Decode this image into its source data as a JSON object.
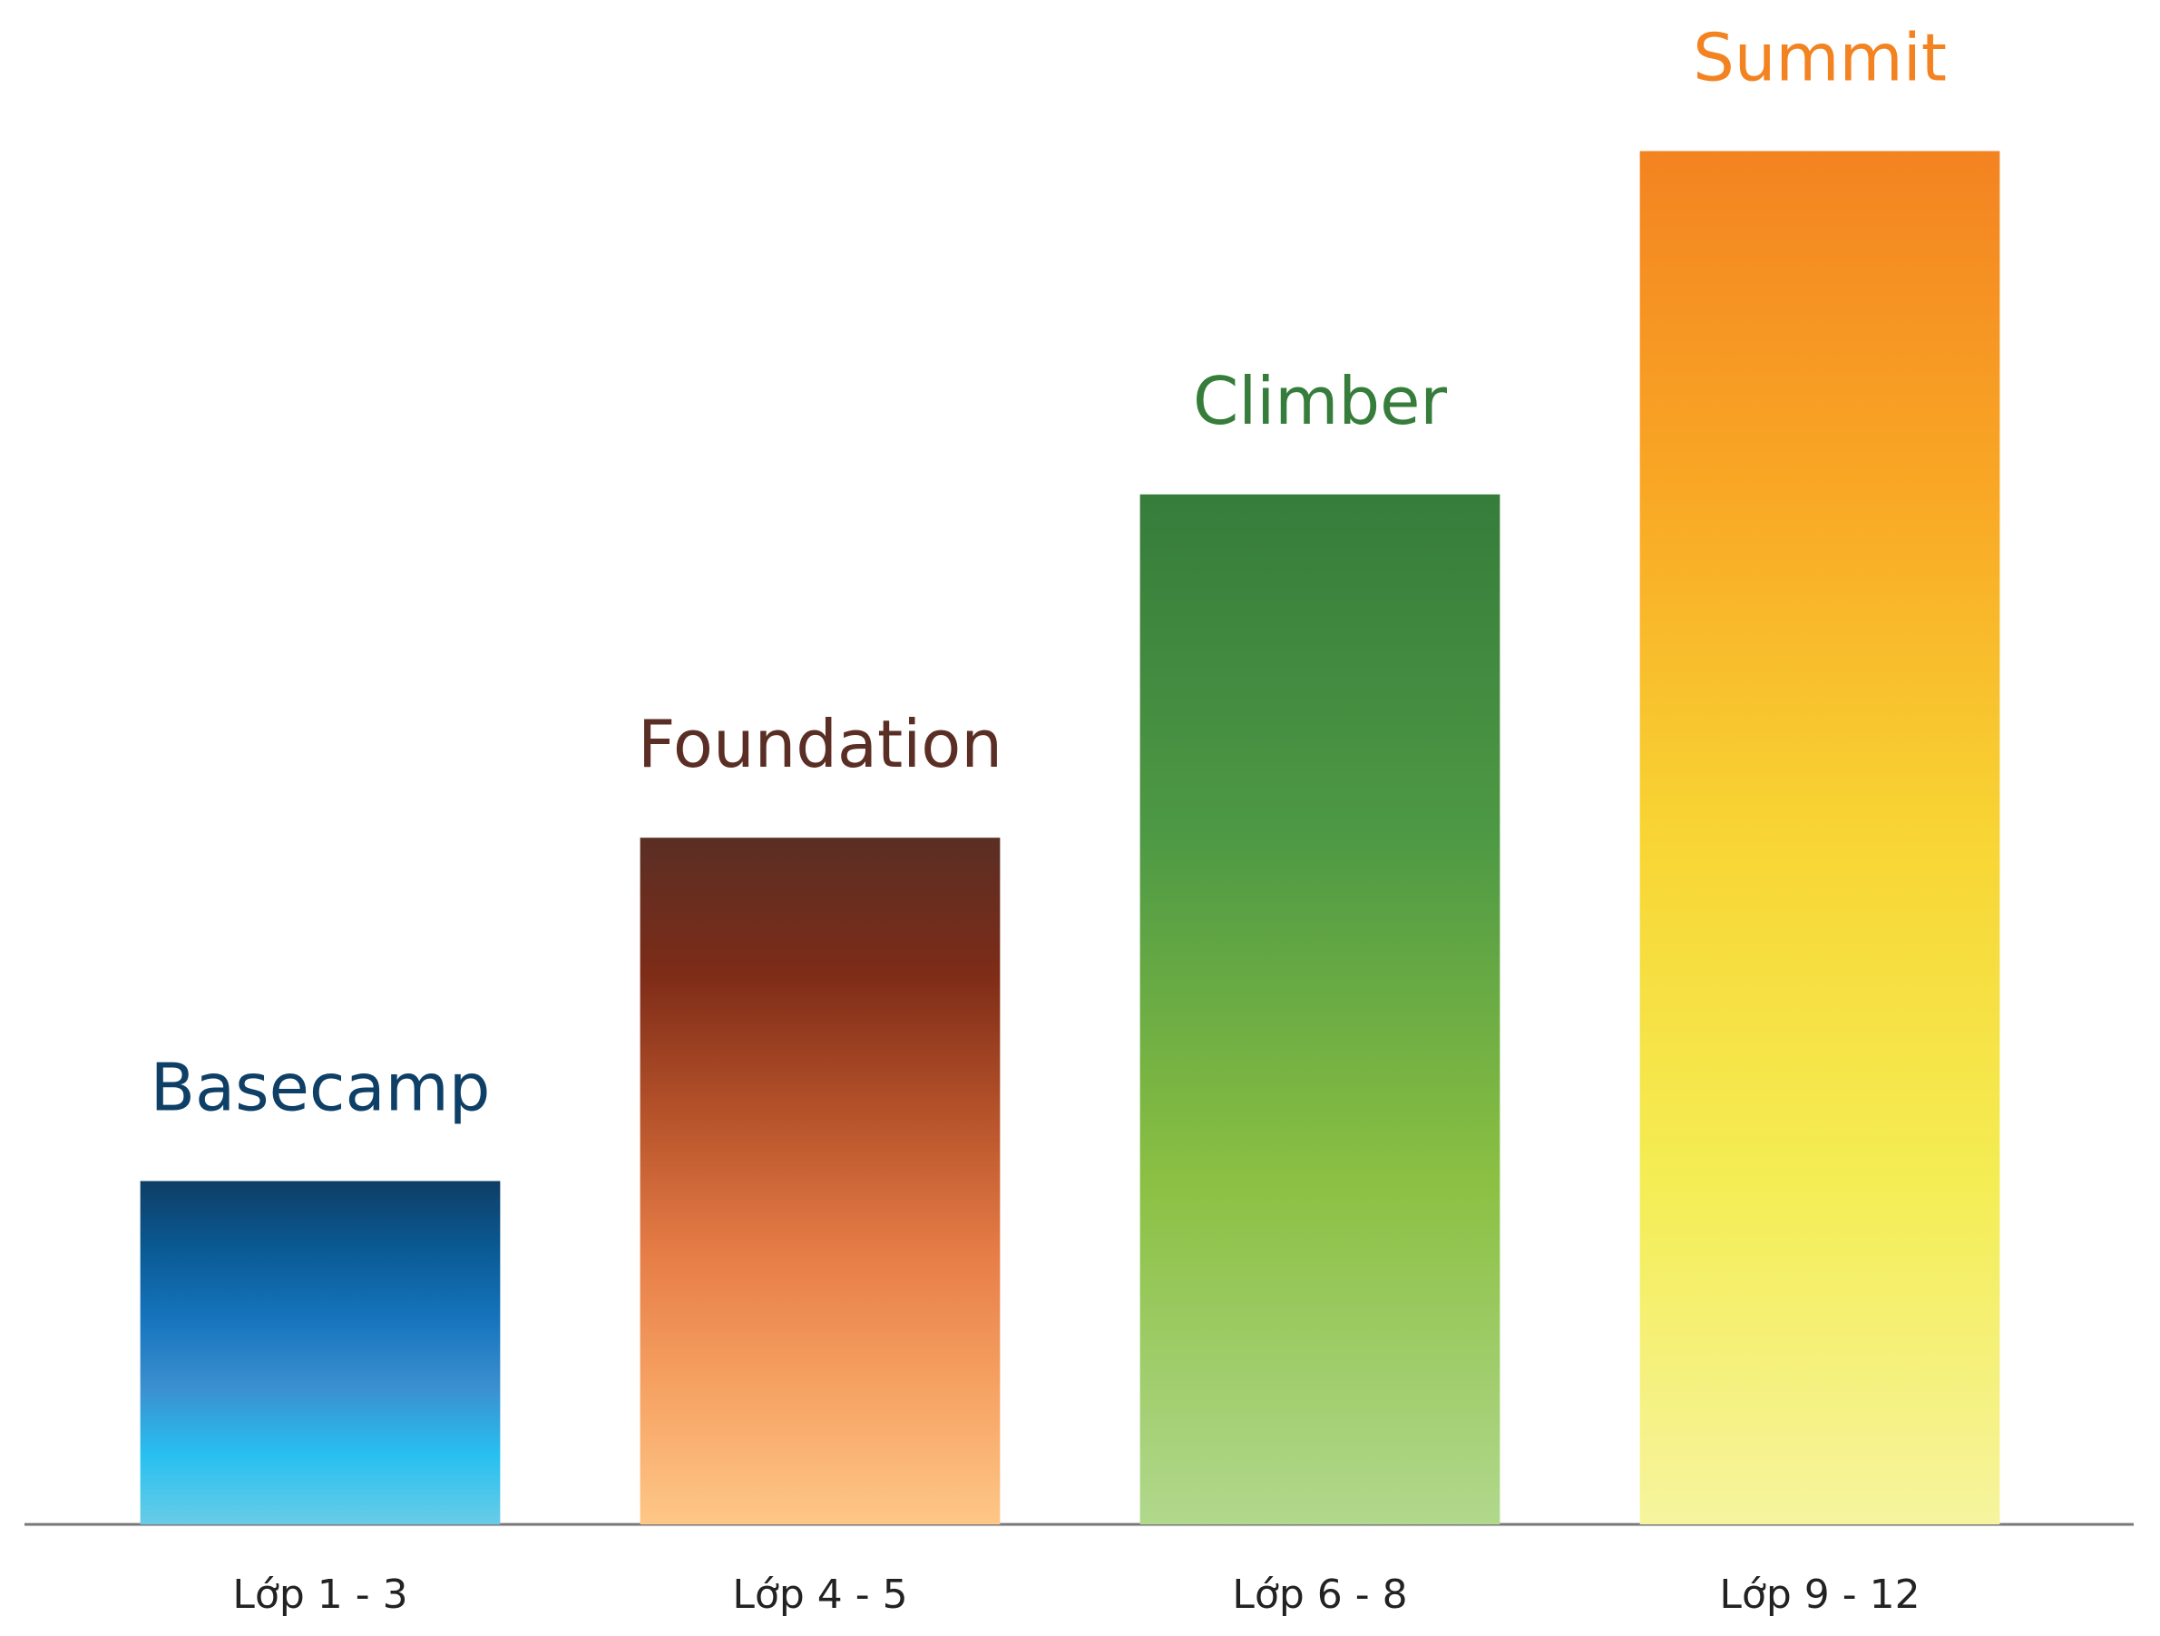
{
  "chart_data": {
    "type": "bar",
    "categories": [
      "Lớp 1 - 3",
      "Lớp 4 - 5",
      "Lớp 6 - 8",
      "Lớp 9 - 12"
    ],
    "labels": [
      "Basecamp",
      "Foundation",
      "Climber",
      "Summit"
    ],
    "label_colors": [
      "#0e3f66",
      "#5a2e24",
      "#367c3b",
      "#f38321"
    ],
    "values": [
      1,
      2,
      3,
      4
    ],
    "gradients": [
      [
        "#0f3e66",
        "#0a5a94",
        "#1674bd",
        "#3b8fcf",
        "#28c0f0",
        "#68cce6"
      ],
      [
        "#5a2e24",
        "#7e2c18",
        "#b5522a",
        "#e57c46",
        "#f6a263",
        "#fec787"
      ],
      [
        "#367c3b",
        "#4e9944",
        "#8bc043",
        "#b1d88c"
      ],
      [
        "#f38321",
        "#f9a825",
        "#f8d534",
        "#f4ed54",
        "#f6f49e"
      ]
    ],
    "ylim": [
      0,
      4.44
    ],
    "grid": false
  }
}
